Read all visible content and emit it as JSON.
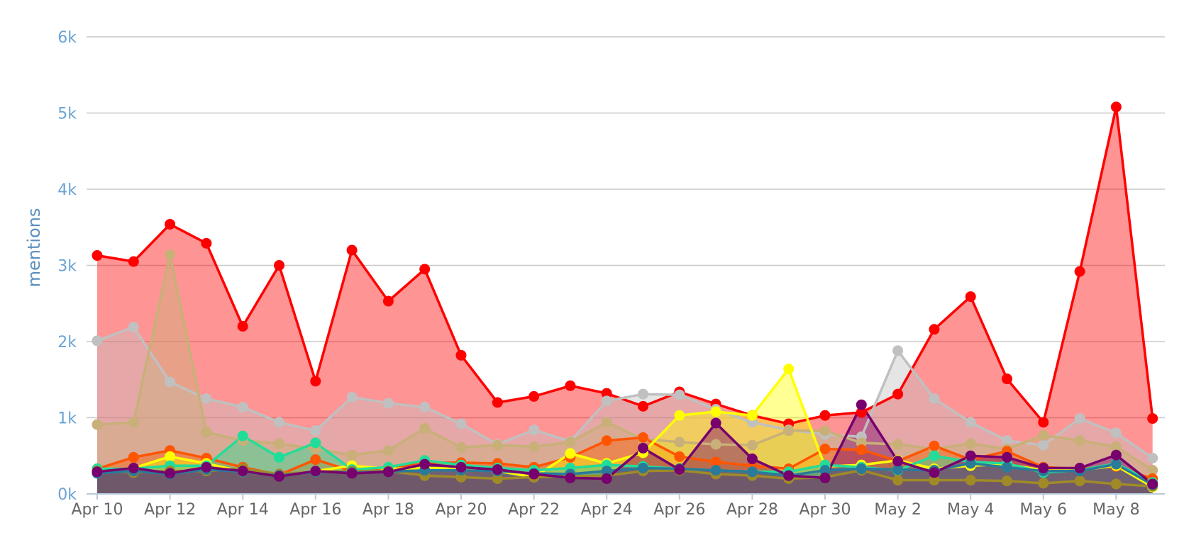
{
  "chart_data": {
    "type": "area",
    "ylabel": "mentions",
    "ylim": [
      0,
      6000
    ],
    "yticks": [
      0,
      1000,
      2000,
      3000,
      4000,
      5000,
      6000
    ],
    "ytick_labels": [
      "0k",
      "1k",
      "2k",
      "3k",
      "4k",
      "5k",
      "6k"
    ],
    "xlabel": "",
    "x_tick_labels": [
      "Apr 10",
      "Apr 12",
      "Apr 14",
      "Apr 16",
      "Apr 18",
      "Apr 20",
      "Apr 22",
      "Apr 24",
      "Apr 26",
      "Apr 28",
      "Apr 30",
      "May 2",
      "May 4",
      "May 6",
      "May 8"
    ],
    "x_tick_index": [
      0,
      2,
      4,
      6,
      8,
      10,
      12,
      14,
      16,
      18,
      20,
      22,
      24,
      26,
      28
    ],
    "x": [
      "Apr 10",
      "Apr 11",
      "Apr 12",
      "Apr 13",
      "Apr 14",
      "Apr 15",
      "Apr 16",
      "Apr 17",
      "Apr 18",
      "Apr 19",
      "Apr 20",
      "Apr 21",
      "Apr 22",
      "Apr 23",
      "Apr 24",
      "Apr 25",
      "Apr 26",
      "Apr 27",
      "Apr 28",
      "Apr 29",
      "Apr 30",
      "May 1",
      "May 2",
      "May 3",
      "May 4",
      "May 5",
      "May 6",
      "May 7",
      "May 8",
      "May 9"
    ],
    "grid": true,
    "legend": "none",
    "series": [
      {
        "color": "#ff0000",
        "values": [
          3130,
          3050,
          3540,
          3290,
          2200,
          3000,
          1480,
          3200,
          2530,
          2950,
          1820,
          1200,
          1280,
          1420,
          1320,
          1150,
          1340,
          1180,
          1030,
          920,
          1030,
          1070,
          1310,
          2160,
          2590,
          1510,
          940,
          2920,
          5080,
          990
        ]
      },
      {
        "color": "#c0c0c0",
        "values": [
          2010,
          2190,
          1470,
          1250,
          1140,
          940,
          830,
          1270,
          1190,
          1140,
          920,
          650,
          840,
          690,
          1220,
          1310,
          1300,
          1110,
          940,
          840,
          780,
          750,
          1880,
          1250,
          940,
          700,
          640,
          990,
          800,
          470
        ]
      },
      {
        "color": "#c8b078",
        "values": [
          910,
          940,
          3140,
          810,
          700,
          660,
          590,
          510,
          570,
          860,
          610,
          640,
          620,
          680,
          940,
          720,
          680,
          650,
          640,
          830,
          830,
          670,
          650,
          590,
          660,
          590,
          770,
          700,
          620,
          310
        ]
      },
      {
        "color": "#ff5500",
        "values": [
          330,
          480,
          570,
          470,
          350,
          250,
          450,
          300,
          320,
          410,
          410,
          400,
          350,
          480,
          700,
          740,
          490,
          420,
          370,
          330,
          590,
          580,
          430,
          630,
          450,
          560,
          350,
          330,
          360,
          200
        ]
      },
      {
        "color": "#ffff00",
        "values": [
          300,
          340,
          490,
          400,
          290,
          240,
          300,
          370,
          330,
          340,
          330,
          300,
          220,
          530,
          400,
          540,
          1030,
          1080,
          1030,
          1640,
          360,
          380,
          440,
          330,
          370,
          390,
          310,
          310,
          370,
          90
        ]
      },
      {
        "color": "#22dd99",
        "values": [
          330,
          330,
          370,
          370,
          760,
          480,
          670,
          320,
          350,
          440,
          380,
          340,
          310,
          340,
          380,
          360,
          330,
          310,
          290,
          290,
          380,
          350,
          310,
          500,
          420,
          400,
          280,
          310,
          400,
          150
        ]
      },
      {
        "color": "#a08a28",
        "values": [
          300,
          280,
          300,
          300,
          330,
          260,
          290,
          300,
          300,
          240,
          220,
          200,
          220,
          230,
          240,
          300,
          310,
          260,
          240,
          200,
          220,
          310,
          180,
          180,
          180,
          170,
          140,
          170,
          130,
          100
        ]
      },
      {
        "color": "#2a7a9a",
        "values": [
          270,
          300,
          260,
          320,
          290,
          240,
          290,
          280,
          290,
          310,
          310,
          300,
          270,
          260,
          300,
          340,
          330,
          310,
          290,
          240,
          310,
          330,
          320,
          310,
          400,
          350,
          300,
          300,
          390,
          120
        ]
      },
      {
        "color": "#77006e",
        "values": [
          290,
          340,
          270,
          350,
          300,
          230,
          300,
          270,
          290,
          390,
          350,
          320,
          260,
          210,
          200,
          600,
          320,
          930,
          460,
          240,
          210,
          1170,
          430,
          280,
          500,
          480,
          340,
          340,
          510,
          130
        ]
      }
    ]
  }
}
